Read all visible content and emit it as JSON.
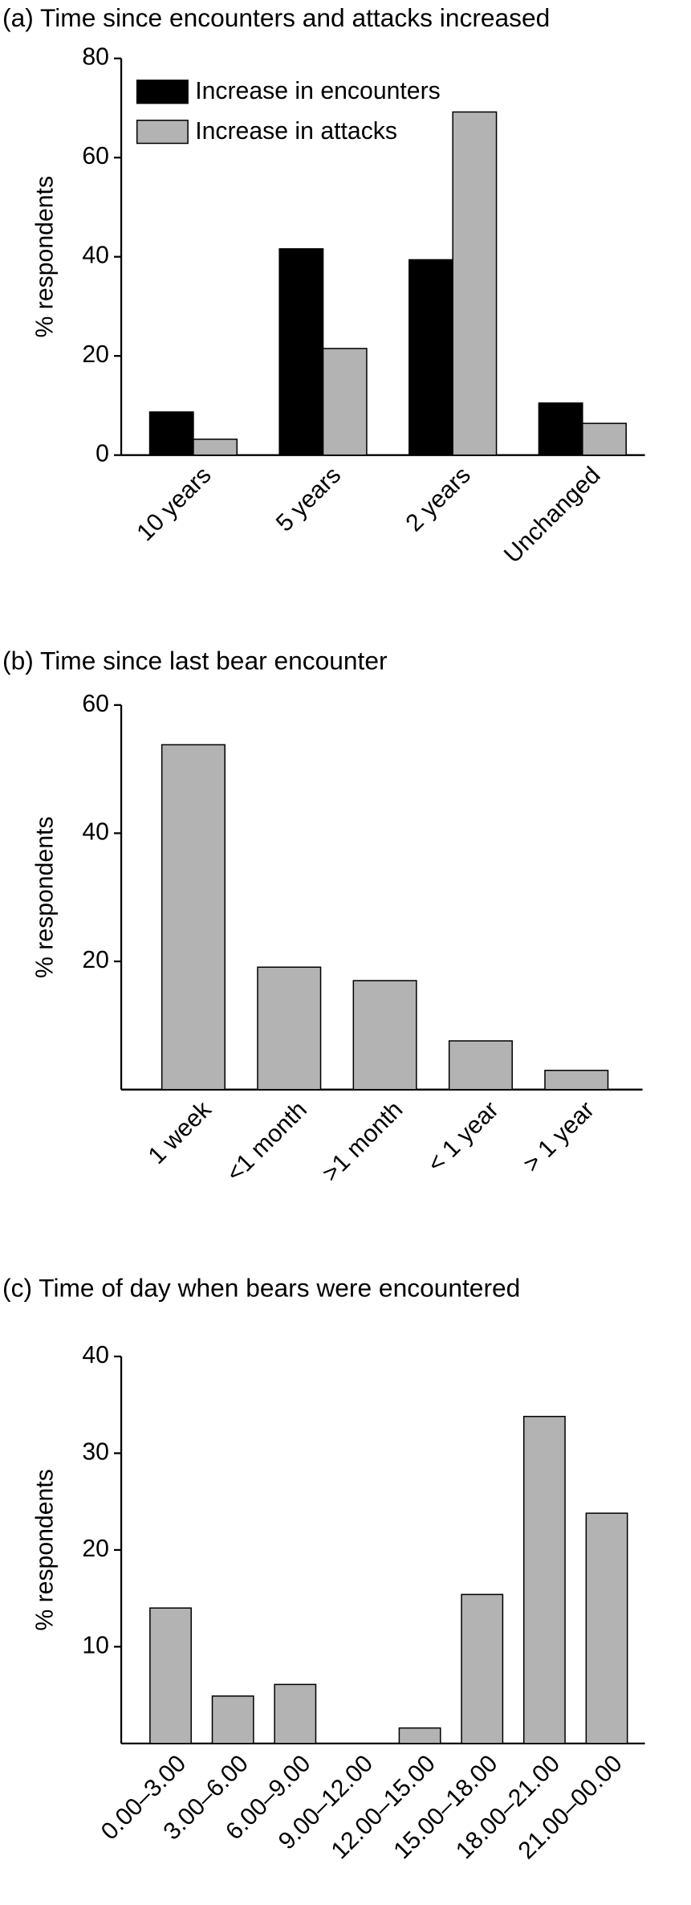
{
  "chart_data": [
    {
      "type": "bar",
      "title": "(a) Time since encounters and attacks increased",
      "y_label": "% respondents",
      "categories": [
        "10 years",
        "5 years",
        "2 years",
        "Unchanged"
      ],
      "series": [
        {
          "name": "Increase in encounters",
          "color": "#000000",
          "values": [
            8.7,
            41.6,
            39.4,
            10.5
          ]
        },
        {
          "name": "Increase in attacks",
          "color": "#b3b3b3",
          "values": [
            3.2,
            21.5,
            69.2,
            6.4
          ]
        }
      ],
      "ylim": [
        0,
        80
      ],
      "yticks": [
        0,
        20,
        40,
        60,
        80
      ]
    },
    {
      "type": "bar",
      "title": "(b) Time since last bear encounter",
      "y_label": "% respondents",
      "categories": [
        "1 week",
        "<1 month",
        ">1 month",
        "< 1 year",
        "> 1 year"
      ],
      "values": [
        53.8,
        19.1,
        17.0,
        7.6,
        3.0
      ],
      "color": "#b3b3b3",
      "ylim": [
        0,
        60
      ],
      "yticks": [
        20,
        40,
        60
      ]
    },
    {
      "type": "bar",
      "title": "(c) Time of day when bears were encountered",
      "y_label": "% respondents",
      "categories": [
        "0.00–3.00",
        "3.00–6.00",
        "6.00–9.00",
        "9.00–12.00",
        "12.00–15.00",
        "15.00–18.00",
        "18.00–21.00",
        "21.00–00.00"
      ],
      "values": [
        14.0,
        4.9,
        6.1,
        0,
        1.6,
        15.4,
        33.8,
        23.8
      ],
      "color": "#b3b3b3",
      "ylim": [
        0,
        40
      ],
      "yticks": [
        10,
        20,
        30,
        40
      ]
    }
  ]
}
